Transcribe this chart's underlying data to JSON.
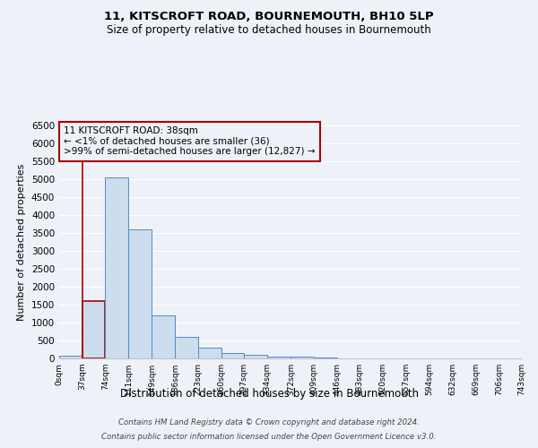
{
  "title": "11, KITSCROFT ROAD, BOURNEMOUTH, BH10 5LP",
  "subtitle": "Size of property relative to detached houses in Bournemouth",
  "xlabel": "Distribution of detached houses by size in Bournemouth",
  "ylabel": "Number of detached properties",
  "footer_line1": "Contains HM Land Registry data © Crown copyright and database right 2024.",
  "footer_line2": "Contains public sector information licensed under the Open Government Licence v3.0.",
  "annotation_title": "11 KITSCROFT ROAD: 38sqm",
  "annotation_line1": "← <1% of detached houses are smaller (36)",
  "annotation_line2": ">99% of semi-detached houses are larger (12,827) →",
  "property_size_sqm": 38,
  "bar_left_edges": [
    0,
    37,
    74,
    111,
    149,
    186,
    223,
    260,
    297,
    334,
    372,
    409,
    446,
    483,
    520,
    557,
    594,
    632,
    669,
    706
  ],
  "bar_widths": [
    37,
    37,
    37,
    38,
    37,
    37,
    37,
    37,
    37,
    38,
    37,
    37,
    37,
    37,
    37,
    37,
    38,
    37,
    37,
    37
  ],
  "bar_heights": [
    70,
    1600,
    5050,
    3600,
    1200,
    600,
    300,
    150,
    100,
    60,
    40,
    15,
    5,
    0,
    0,
    0,
    0,
    0,
    0,
    0
  ],
  "bar_color": "#ccdded",
  "bar_edge_color": "#5588cc",
  "highlight_bar_edge_color": "#aa0000",
  "annotation_box_edge_color": "#aa0000",
  "bg_color": "#eef2f8",
  "grid_color": "#ffffff",
  "x_tick_labels": [
    "0sqm",
    "37sqm",
    "74sqm",
    "111sqm",
    "149sqm",
    "186sqm",
    "223sqm",
    "260sqm",
    "297sqm",
    "334sqm",
    "372sqm",
    "409sqm",
    "446sqm",
    "483sqm",
    "520sqm",
    "557sqm",
    "594sqm",
    "632sqm",
    "669sqm",
    "706sqm",
    "743sqm"
  ],
  "ylim": [
    0,
    6500
  ],
  "yticks": [
    0,
    500,
    1000,
    1500,
    2000,
    2500,
    3000,
    3500,
    4000,
    4500,
    5000,
    5500,
    6000,
    6500
  ]
}
